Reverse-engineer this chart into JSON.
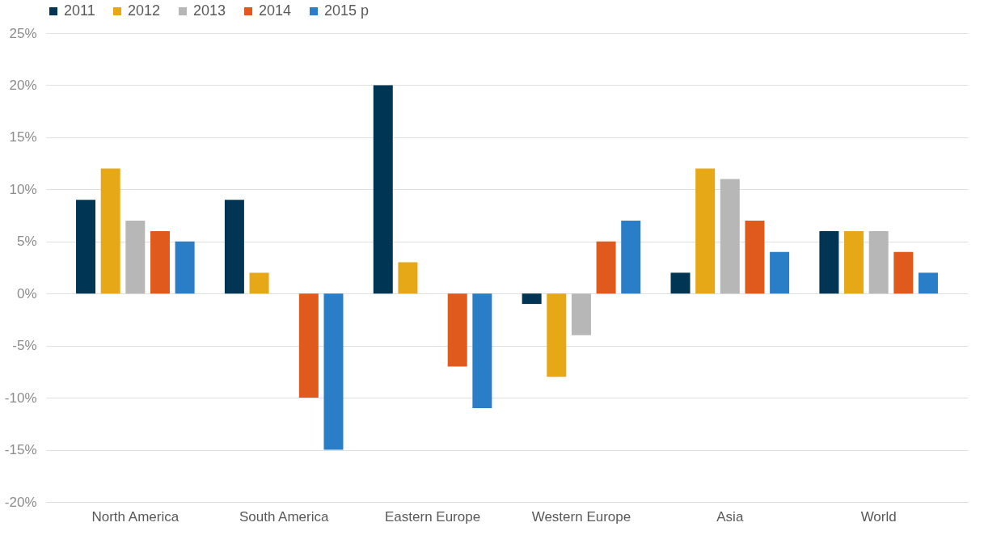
{
  "chart_data": {
    "type": "bar",
    "categories": [
      "North America",
      "South America",
      "Eastern Europe",
      "Western Europe",
      "Asia",
      "World"
    ],
    "series": [
      {
        "name": "2011",
        "color": "#003554",
        "values": [
          9,
          9,
          20,
          -1,
          2,
          6
        ]
      },
      {
        "name": "2012",
        "color": "#e6a817",
        "values": [
          12,
          2,
          3,
          -8,
          12,
          6
        ]
      },
      {
        "name": "2013",
        "color": "#b7b7b7",
        "values": [
          7,
          0,
          0,
          -4,
          11,
          6
        ]
      },
      {
        "name": "2014",
        "color": "#e05a1e",
        "values": [
          6,
          -10,
          -7,
          5,
          7,
          4
        ]
      },
      {
        "name": "2015 p",
        "color": "#2a7ec8",
        "values": [
          5,
          -15,
          -11,
          7,
          4,
          2
        ]
      }
    ],
    "ylim": [
      -20,
      25
    ],
    "yticks": [
      {
        "value": -20,
        "label": "-20%"
      },
      {
        "value": -15,
        "label": "-15%"
      },
      {
        "value": -10,
        "label": "-10%"
      },
      {
        "value": -5,
        "label": "-5%"
      },
      {
        "value": 0,
        "label": "0%"
      },
      {
        "value": 5,
        "label": "5%"
      },
      {
        "value": 10,
        "label": "10%"
      },
      {
        "value": 15,
        "label": "15%"
      },
      {
        "value": 20,
        "label": "20%"
      },
      {
        "value": 25,
        "label": "25%"
      }
    ],
    "grid": "y",
    "legend": "top"
  }
}
